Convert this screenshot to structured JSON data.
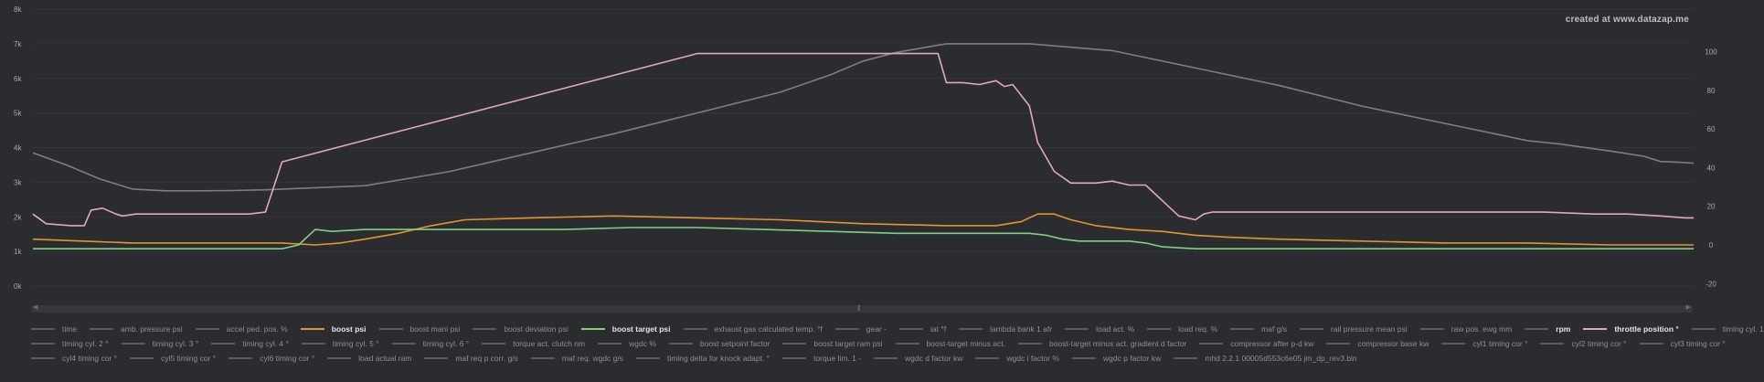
{
  "watermark": "created at www.datazap.me",
  "chart_data": {
    "type": "line",
    "left_axis": {
      "ticks": [
        "0k",
        "1k",
        "2k",
        "3k",
        "4k",
        "5k",
        "6k",
        "7k",
        "8k"
      ],
      "ylim": [
        0,
        8000
      ]
    },
    "right_axis": {
      "ticks": [
        "-20",
        "0",
        "20",
        "40",
        "60",
        "80",
        "100"
      ],
      "ylim": [
        -26,
        122
      ]
    },
    "x_range": [
      0,
      100
    ],
    "grid": "horizontal",
    "series": [
      {
        "name": "rpm",
        "axis": "left",
        "color": "#7d7e83",
        "x": [
          0,
          2,
          4,
          6,
          8,
          10,
          12,
          14,
          16,
          20,
          25,
          30,
          35,
          40,
          45,
          48,
          50,
          52,
          55,
          60,
          65,
          70,
          75,
          80,
          85,
          88,
          90,
          92,
          95,
          97,
          98,
          99,
          100
        ],
        "y": [
          3850,
          3500,
          3100,
          2800,
          2750,
          2750,
          2760,
          2780,
          2820,
          2900,
          3300,
          3850,
          4400,
          5000,
          5600,
          6100,
          6500,
          6750,
          7000,
          7000,
          6800,
          6300,
          5800,
          5200,
          4700,
          4400,
          4200,
          4100,
          3900,
          3750,
          3600,
          3580,
          3550
        ]
      },
      {
        "name": "throttle position °",
        "axis": "right",
        "color": "#e6a3c6",
        "x": [
          0,
          0.8,
          2.3,
          3.1,
          3.5,
          4.2,
          5.0,
          5.4,
          6.2,
          6.6,
          7.0,
          7.5,
          8.5,
          10,
          11,
          12,
          13,
          14,
          15,
          40,
          50,
          54.5,
          55.0,
          56,
          57,
          58,
          58.5,
          59,
          60,
          60.5,
          61.5,
          62.5,
          64,
          65,
          66,
          67,
          69,
          70,
          70.5,
          71,
          72,
          74,
          78,
          82,
          85,
          88,
          91,
          94,
          96,
          98,
          99.5,
          100
        ],
        "y": [
          16,
          11,
          10,
          10,
          18,
          19,
          16,
          15,
          16,
          16,
          16,
          16,
          16,
          16,
          16,
          16,
          16,
          17,
          43,
          99,
          99,
          99,
          84,
          84,
          83,
          85,
          82,
          83,
          72,
          53,
          38,
          32,
          32,
          33,
          31,
          31,
          15,
          13,
          16,
          17,
          17,
          17,
          17,
          17,
          17,
          17,
          17,
          16,
          16,
          15,
          14,
          14
        ]
      },
      {
        "name": "boost psi",
        "axis": "right",
        "color": "#e0962e",
        "x": [
          0,
          3,
          6,
          10,
          15,
          17,
          18.5,
          20,
          22,
          24,
          26,
          30,
          35,
          40,
          45,
          50,
          55,
          58,
          59.5,
          60.5,
          61.5,
          62.5,
          64,
          66,
          68,
          70,
          72,
          75,
          80,
          85,
          90,
          95,
          100
        ],
        "y": [
          3,
          2,
          1,
          1,
          1,
          0,
          1,
          3,
          6,
          10,
          13,
          14,
          15,
          14,
          13,
          11,
          10,
          10,
          12,
          16,
          16,
          13,
          10,
          8,
          7,
          5,
          4,
          3,
          2,
          1,
          1,
          0,
          0
        ]
      },
      {
        "name": "boost target psi",
        "axis": "right",
        "color": "#7fd17f",
        "x": [
          0,
          5,
          10,
          15,
          16,
          17,
          18,
          20,
          24,
          28,
          32,
          36,
          40,
          44,
          48,
          52,
          56,
          58,
          60,
          61,
          62,
          63,
          64,
          65,
          66,
          67,
          68,
          70,
          75,
          80,
          85,
          90,
          95,
          100
        ],
        "y": [
          -2,
          -2,
          -2,
          -2,
          0,
          8,
          7,
          8,
          8,
          8,
          8,
          9,
          9,
          8,
          7,
          6,
          6,
          6,
          6,
          5,
          3,
          2,
          2,
          2,
          2,
          1,
          -1,
          -2,
          -2,
          -2,
          -2,
          -2,
          -2,
          -2
        ]
      }
    ],
    "legend": {
      "position": "bottom",
      "rows": [
        [
          {
            "label": "time",
            "active": false
          },
          {
            "label": "amb. pressure psi",
            "active": false
          },
          {
            "label": "accel ped. pos. %",
            "active": false
          },
          {
            "label": "boost psi",
            "active": true,
            "color": "#e0962e"
          },
          {
            "label": "boost mani psi",
            "active": false
          },
          {
            "label": "boost deviation psi",
            "active": false
          },
          {
            "label": "boost target psi",
            "active": true,
            "color": "#7fd17f"
          },
          {
            "label": "exhaust gas calculated temp. °f",
            "active": false
          },
          {
            "label": "gear -",
            "active": false
          },
          {
            "label": "iat °f",
            "active": false
          },
          {
            "label": "lambda bank 1 afr",
            "active": false
          },
          {
            "label": "load act. %",
            "active": false
          },
          {
            "label": "load req. %",
            "active": false
          },
          {
            "label": "maf g/s",
            "active": false
          },
          {
            "label": "rail pressure mean psi",
            "active": false
          },
          {
            "label": "raw pos. ewg mm",
            "active": false
          },
          {
            "label": "rpm",
            "active": true,
            "color": "#5a5b60"
          },
          {
            "label": "throttle position °",
            "active": true,
            "color": "#e6a3c6"
          },
          {
            "label": "timing cyl. 1",
            "active": false
          }
        ],
        [
          {
            "label": "timing cyl. 2 °",
            "active": false
          },
          {
            "label": "timing cyl. 3 °",
            "active": false
          },
          {
            "label": "timing cyl. 4 °",
            "active": false
          },
          {
            "label": "timing cyl. 5 °",
            "active": false
          },
          {
            "label": "timing cyl. 6 °",
            "active": false
          },
          {
            "label": "torque act. clutch nm",
            "active": false
          },
          {
            "label": "wgdc %",
            "active": false
          },
          {
            "label": "boost setpoint factor",
            "active": false
          },
          {
            "label": "boost target ram psi",
            "active": false
          },
          {
            "label": "boost-target minus act.",
            "active": false
          },
          {
            "label": "boost-target minus act. gradient d factor",
            "active": false
          },
          {
            "label": "compressor after p-d kw",
            "active": false
          },
          {
            "label": "compressor base kw",
            "active": false
          },
          {
            "label": "cyl1 timing cor °",
            "active": false
          },
          {
            "label": "cyl2 timing cor °",
            "active": false
          },
          {
            "label": "cyl3 timing cor °",
            "active": false
          }
        ],
        [
          {
            "label": "cyl4 timing cor °",
            "active": false
          },
          {
            "label": "cyl5 timing cor °",
            "active": false
          },
          {
            "label": "cyl6 timing cor °",
            "active": false
          },
          {
            "label": "load actual ram",
            "active": false
          },
          {
            "label": "maf req p corr. g/s",
            "active": false
          },
          {
            "label": "maf req. wgdc g/s",
            "active": false
          },
          {
            "label": "timing delta for knock adapt. °",
            "active": false
          },
          {
            "label": "torque lim. 1 -",
            "active": false
          },
          {
            "label": "wgdc d factor kw",
            "active": false
          },
          {
            "label": "wgdc i factor %",
            "active": false
          },
          {
            "label": "wgdc p factor kw",
            "active": false
          },
          {
            "label": "mhd 2.2.1 00005d553c6e05 jm_dp_rev3.bin",
            "active": false
          }
        ]
      ]
    }
  }
}
